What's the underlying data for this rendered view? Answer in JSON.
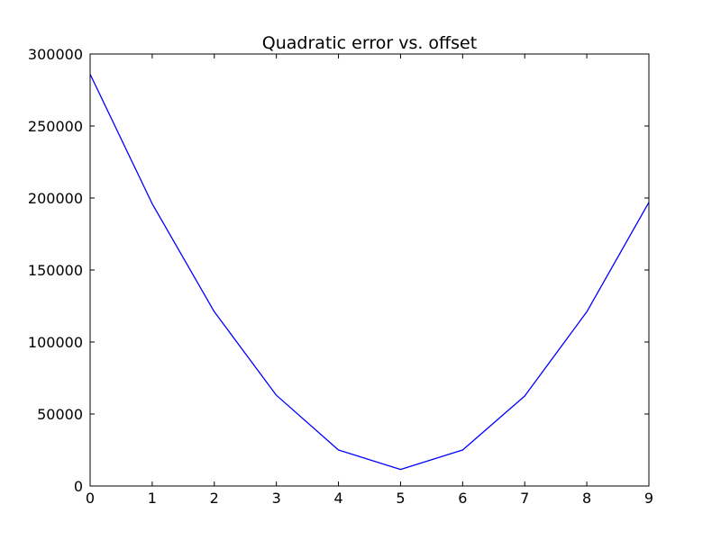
{
  "chart_data": {
    "type": "line",
    "title": "Quadratic error vs. offset",
    "xlabel": "",
    "ylabel": "",
    "x": [
      0,
      1,
      2,
      3,
      4,
      5,
      6,
      7,
      8,
      9
    ],
    "series": [
      {
        "values": [
          286000,
          196000,
          121000,
          63000,
          25000,
          11500,
          25000,
          62500,
          121000,
          197000
        ],
        "color": "#0000ff"
      }
    ],
    "xlim": [
      0,
      9
    ],
    "ylim": [
      0,
      300000
    ],
    "xticks": [
      0,
      1,
      2,
      3,
      4,
      5,
      6,
      7,
      8,
      9
    ],
    "yticks": [
      0,
      50000,
      100000,
      150000,
      200000,
      250000,
      300000
    ],
    "xtick_labels": [
      "0",
      "1",
      "2",
      "3",
      "4",
      "5",
      "6",
      "7",
      "8",
      "9"
    ],
    "ytick_labels": [
      "0",
      "50000",
      "100000",
      "150000",
      "200000",
      "250000",
      "300000"
    ],
    "grid": false,
    "legend": "none"
  }
}
